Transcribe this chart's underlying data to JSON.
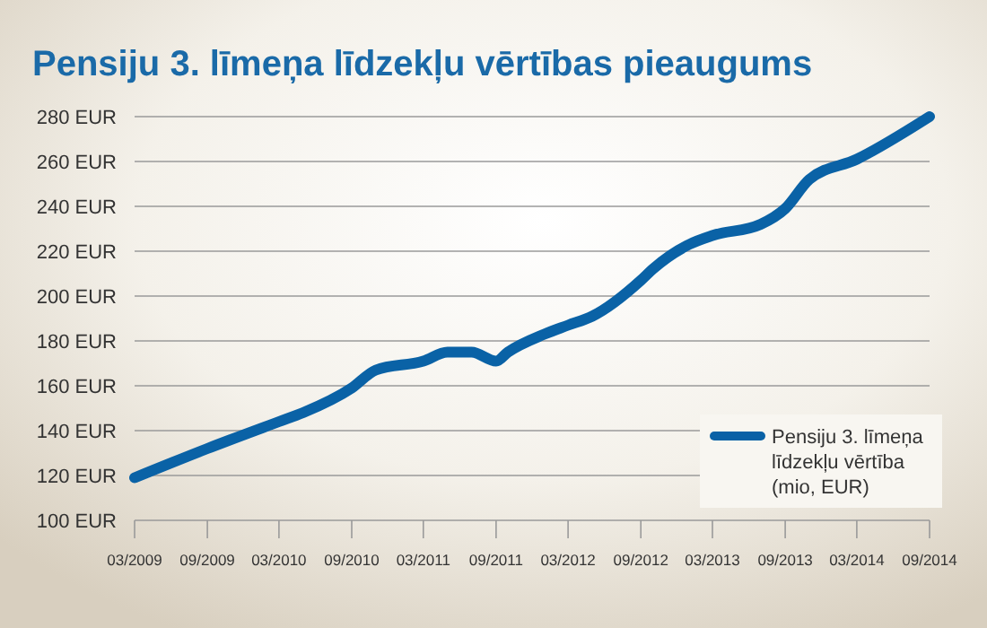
{
  "chart_data": {
    "type": "line",
    "title": "Pensiju 3. līmeņa līdzekļu vērtības pieaugums",
    "x": [
      "2009-03",
      "2009-09",
      "2010-03",
      "2010-05",
      "2010-09",
      "2010-11",
      "2011-03",
      "2011-05",
      "2011-07",
      "2011-09",
      "2011-10",
      "2012-01",
      "2012-03",
      "2012-05",
      "2012-09",
      "2012-10",
      "2013-01",
      "2013-03",
      "2013-07",
      "2013-09",
      "2013-11",
      "2014-03",
      "2014-09"
    ],
    "series": [
      {
        "name": "Pensiju 3. līmeņa līdzekļu vērtība (mio, EUR)",
        "color": "#0a62a6",
        "values": [
          119,
          132,
          144,
          148,
          159,
          167,
          171,
          175,
          175,
          171,
          175,
          183,
          187,
          191,
          207,
          212,
          223,
          227,
          232,
          239,
          252,
          261,
          280
        ]
      }
    ],
    "xlim": [
      "2009-03",
      "2014-09"
    ],
    "xticks": [
      {
        "value": "2009-03",
        "label": "03/2009"
      },
      {
        "value": "2009-09",
        "label": "09/2009"
      },
      {
        "value": "2010-03",
        "label": "03/2010"
      },
      {
        "value": "2010-09",
        "label": "09/2010"
      },
      {
        "value": "2011-03",
        "label": "03/2011"
      },
      {
        "value": "2011-09",
        "label": "09/2011"
      },
      {
        "value": "2012-03",
        "label": "03/2012"
      },
      {
        "value": "2012-09",
        "label": "09/2012"
      },
      {
        "value": "2013-03",
        "label": "03/2013"
      },
      {
        "value": "2013-09",
        "label": "09/2013"
      },
      {
        "value": "2014-03",
        "label": "03/2014"
      },
      {
        "value": "2014-09",
        "label": "09/2014"
      }
    ],
    "ylim": [
      100,
      280
    ],
    "yticks": [
      {
        "value": 100,
        "label": "100 EUR"
      },
      {
        "value": 120,
        "label": "120 EUR"
      },
      {
        "value": 140,
        "label": "140 EUR"
      },
      {
        "value": 160,
        "label": "160 EUR"
      },
      {
        "value": 180,
        "label": "180 EUR"
      },
      {
        "value": 200,
        "label": "200 EUR"
      },
      {
        "value": 220,
        "label": "220 EUR"
      },
      {
        "value": 240,
        "label": "240 EUR"
      },
      {
        "value": 260,
        "label": "260 EUR"
      },
      {
        "value": 280,
        "label": "280 EUR"
      }
    ],
    "grid": "y",
    "legend": "bottom right",
    "marker": "none",
    "line_style": "solid"
  }
}
